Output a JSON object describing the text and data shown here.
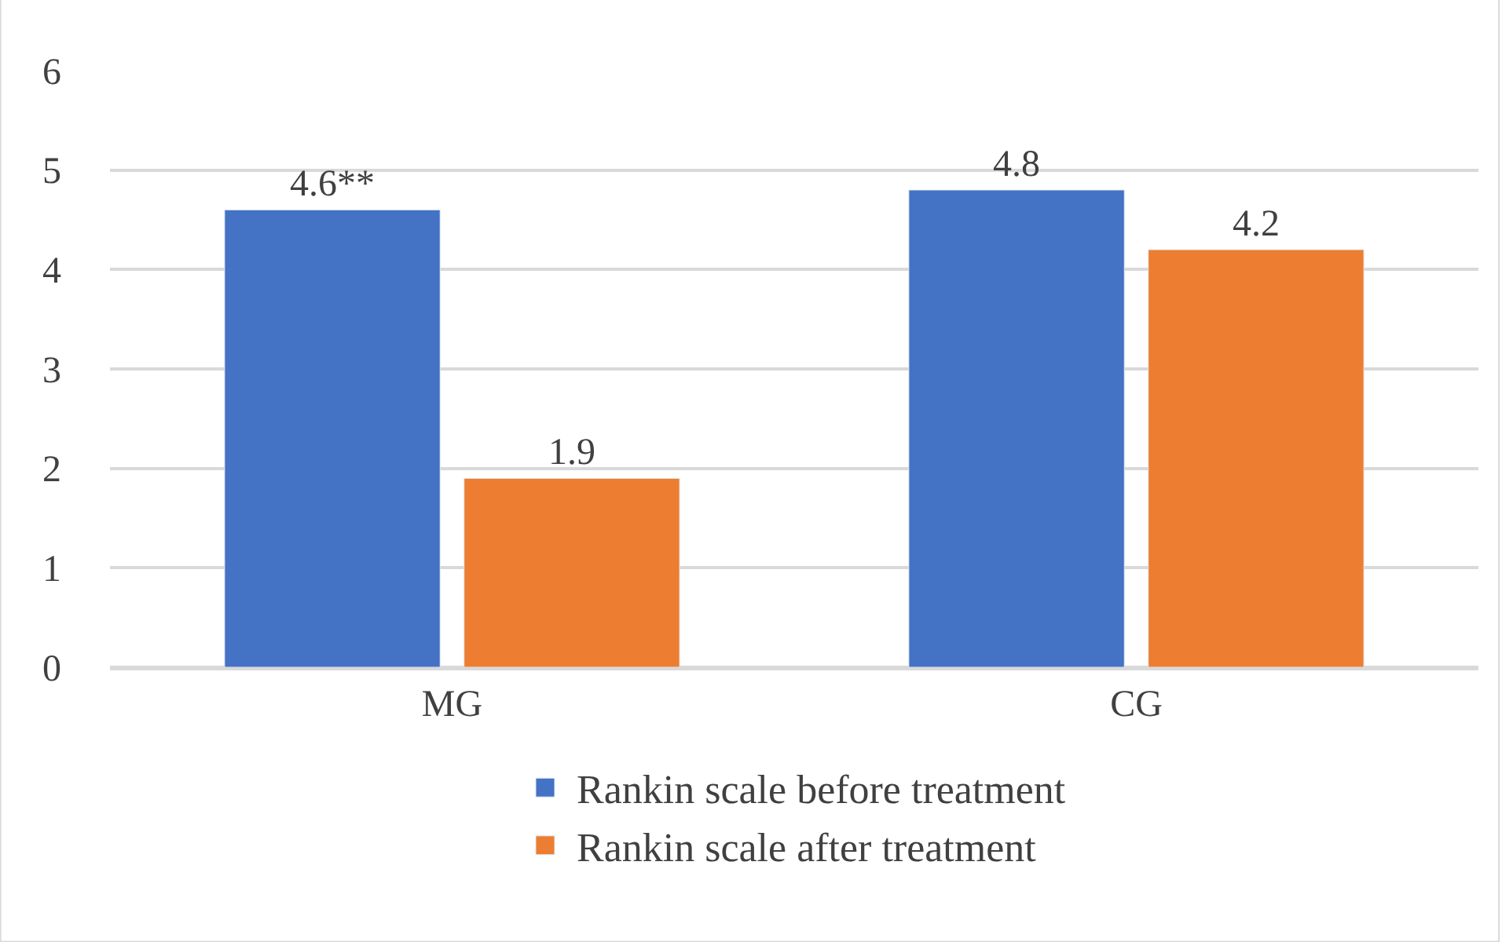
{
  "chart_data": {
    "type": "bar",
    "categories": [
      "MG",
      "CG"
    ],
    "series": [
      {
        "name": "Rankin scale before treatment",
        "color": "#4472c4",
        "values": [
          4.6,
          4.8
        ],
        "value_labels": [
          "4.6**",
          "4.8"
        ]
      },
      {
        "name": "Rankin scale after treatment",
        "color": "#ed7d31",
        "values": [
          1.9,
          4.2
        ],
        "value_labels": [
          "1.9",
          "4.2"
        ]
      }
    ],
    "ylim": [
      0,
      6
    ],
    "yticks": [
      0,
      1,
      2,
      3,
      4,
      5,
      6
    ],
    "grid": "y",
    "legend": "bottom"
  }
}
